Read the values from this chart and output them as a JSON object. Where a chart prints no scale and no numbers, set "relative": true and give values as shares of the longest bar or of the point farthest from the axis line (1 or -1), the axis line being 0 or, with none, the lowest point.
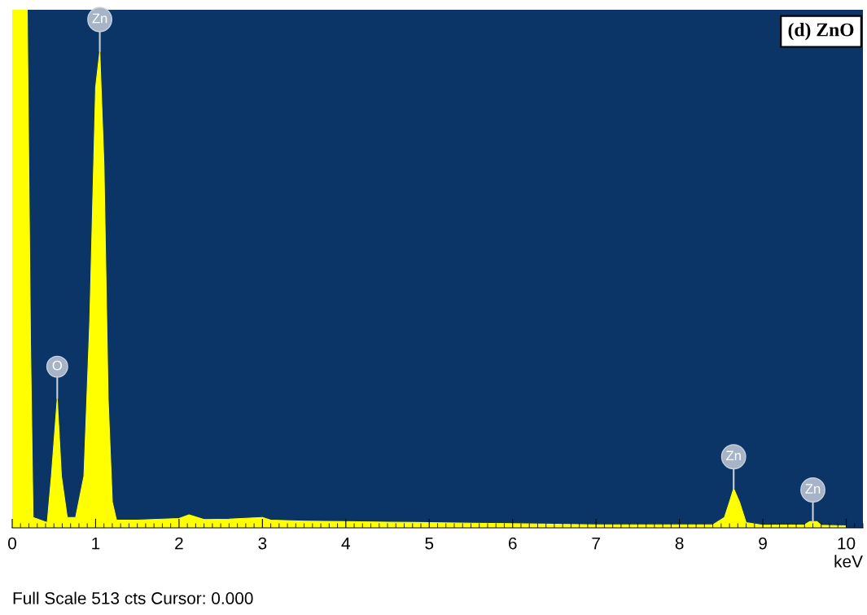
{
  "chart_data": {
    "type": "area",
    "title": "(d) ZnO",
    "xlabel": "keV",
    "relative": true,
    "x": [
      0,
      0.18,
      0.22,
      0.25,
      0.42,
      0.47,
      0.54,
      0.59,
      0.66,
      0.76,
      0.86,
      0.93,
      1.0,
      1.05,
      1.1,
      1.15,
      1.2,
      1.25,
      1.5,
      2.0,
      2.12,
      2.3,
      2.6,
      3.0,
      3.1,
      3.5,
      4.0,
      4.5,
      5.0,
      5.5,
      6.0,
      7.0,
      8.0,
      8.4,
      8.54,
      8.6,
      8.65,
      8.72,
      8.8,
      9.0,
      9.5,
      9.56,
      9.65,
      9.7,
      10.0
    ],
    "series": [
      {
        "color": "#ffff00",
        "values": [
          1,
          1,
          0.35,
          0.02,
          0.01,
          0.1,
          0.25,
          0.1,
          0.02,
          0.02,
          0.1,
          0.4,
          0.85,
          0.92,
          0.7,
          0.25,
          0.05,
          0.015,
          0.015,
          0.018,
          0.025,
          0.016,
          0.017,
          0.02,
          0.015,
          0.013,
          0.012,
          0.011,
          0.01,
          0.009,
          0.008,
          0.006,
          0.006,
          0.006,
          0.02,
          0.05,
          0.076,
          0.05,
          0.01,
          0.005,
          0.006,
          0.012,
          0.012,
          0.005,
          0.004
        ]
      }
    ],
    "xlim": [
      0,
      10.2
    ],
    "xticks": [
      0,
      1,
      2,
      3,
      4,
      5,
      6,
      7,
      8,
      9,
      10
    ],
    "grid": false,
    "legend": false,
    "annotations": [
      {
        "text": "Zn",
        "x": 1.05,
        "y": 0.92
      },
      {
        "text": "O",
        "x": 0.54,
        "y": 0.25
      },
      {
        "text": "Zn",
        "x": 8.65,
        "y": 0.076
      },
      {
        "text": "Zn",
        "x": 9.6,
        "y": 0.012
      },
      "Full Scale 513 cts Cursor: 0.000"
    ]
  }
}
